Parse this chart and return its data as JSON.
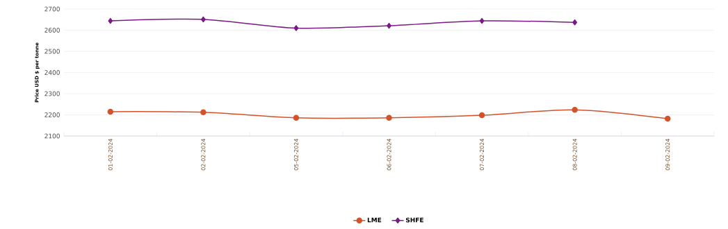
{
  "chart_data": {
    "type": "line",
    "ylabel": "Price USD $ per tonne",
    "categories": [
      "01-02-2024",
      "02-02-2024",
      "05-02-2024",
      "06-02-2024",
      "07-02-2024",
      "08-02-2024",
      "09-02-2024"
    ],
    "series": [
      {
        "name": "LME",
        "color": "#d4522a",
        "marker": "circle",
        "values": [
          2215,
          2212,
          2186,
          2186,
          2198,
          2224,
          2182
        ]
      },
      {
        "name": "SHFE",
        "color": "#7b1a87",
        "marker": "diamond",
        "values": [
          2644,
          2651,
          2610,
          2621,
          2644,
          2637,
          null
        ]
      }
    ],
    "ylim": [
      2100,
      2700
    ],
    "yticks": [
      2100,
      2200,
      2300,
      2400,
      2500,
      2600,
      2700
    ],
    "grid": "y",
    "legend": "bottom",
    "line_style": "solid"
  }
}
